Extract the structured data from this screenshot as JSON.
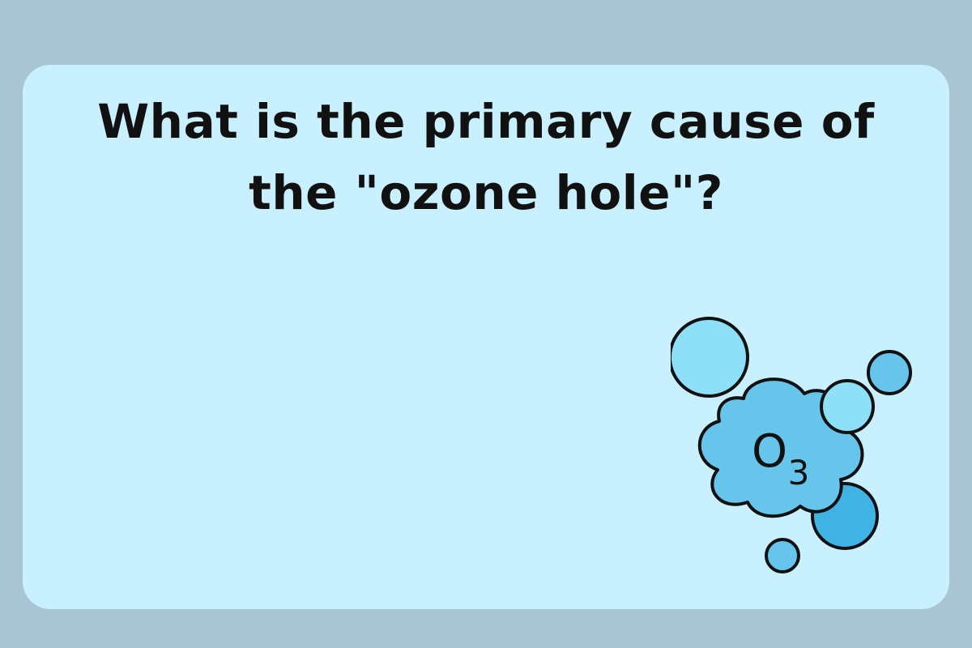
{
  "card": {
    "question": "What is the primary cause of the \"ozone hole\"?"
  },
  "illustration": {
    "icon": "ozone-molecule-icon",
    "formula_main": "O",
    "formula_subscript": "3"
  },
  "colors": {
    "background": "#a9c5d2",
    "card": "#c8f0fe",
    "text": "#111111",
    "bubble_light": "#8ee0f8",
    "bubble_mid": "#67c4ea",
    "bubble_dark": "#40b2e4",
    "outline": "#111111"
  }
}
